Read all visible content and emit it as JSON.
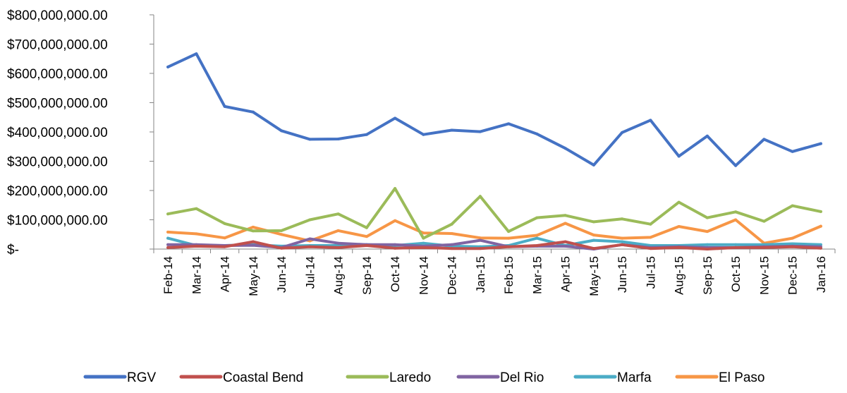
{
  "chart_data": {
    "type": "line",
    "title": "",
    "xlabel": "",
    "ylabel": "",
    "categories": [
      "Feb-14",
      "Mar-14",
      "Apr-14",
      "May-14",
      "Jun-14",
      "Jul-14",
      "Aug-14",
      "Sep-14",
      "Oct-14",
      "Nov-14",
      "Dec-14",
      "Jan-15",
      "Feb-15",
      "Mar-15",
      "Apr-15",
      "May-15",
      "Jun-15",
      "Jul-15",
      "Aug-15",
      "Sep-15",
      "Oct-15",
      "Nov-15",
      "Dec-15",
      "Jan-16"
    ],
    "ylim": [
      0,
      800000000
    ],
    "yticks": [
      0,
      100000000,
      200000000,
      300000000,
      400000000,
      500000000,
      600000000,
      700000000,
      800000000
    ],
    "ytick_labels": [
      "$-",
      "$100,000,000.00",
      "$200,000,000.00",
      "$300,000,000.00",
      "$400,000,000.00",
      "$500,000,000.00",
      "$600,000,000.00",
      "$700,000,000.00",
      "$800,000,000.00"
    ],
    "grid": false,
    "legend_position": "bottom",
    "series": [
      {
        "name": "RGV",
        "color": "#4472C4",
        "values": [
          622000000,
          667000000,
          487000000,
          468000000,
          404000000,
          375000000,
          376000000,
          391000000,
          447000000,
          391000000,
          406000000,
          401000000,
          428000000,
          393000000,
          344000000,
          287000000,
          398000000,
          440000000,
          317000000,
          386000000,
          285000000,
          375000000,
          333000000,
          360000000
        ]
      },
      {
        "name": "Coastal Bend",
        "color": "#C0504D",
        "values": [
          5000000,
          10000000,
          8000000,
          25000000,
          3000000,
          8000000,
          5000000,
          12000000,
          3000000,
          5000000,
          2000000,
          2000000,
          8000000,
          12000000,
          25000000,
          2000000,
          15000000,
          2000000,
          5000000,
          0,
          5000000,
          5000000,
          8000000,
          3000000
        ]
      },
      {
        "name": "Laredo",
        "color": "#9BBB59",
        "values": [
          120000000,
          138000000,
          87000000,
          62000000,
          63000000,
          100000000,
          120000000,
          73000000,
          207000000,
          37000000,
          85000000,
          180000000,
          60000000,
          107000000,
          115000000,
          93000000,
          103000000,
          85000000,
          160000000,
          107000000,
          127000000,
          95000000,
          148000000,
          128000000
        ]
      },
      {
        "name": "Del Rio",
        "color": "#8064A2",
        "values": [
          15000000,
          15000000,
          12000000,
          13000000,
          5000000,
          35000000,
          20000000,
          15000000,
          15000000,
          10000000,
          15000000,
          30000000,
          8000000,
          10000000,
          10000000,
          0,
          15000000,
          5000000,
          8000000,
          5000000,
          5000000,
          8000000,
          10000000,
          8000000
        ]
      },
      {
        "name": "Marfa",
        "color": "#4BACC6",
        "values": [
          37000000,
          12000000,
          12000000,
          15000000,
          10000000,
          12000000,
          12000000,
          15000000,
          12000000,
          20000000,
          10000000,
          8000000,
          12000000,
          37000000,
          12000000,
          30000000,
          25000000,
          12000000,
          12000000,
          15000000,
          15000000,
          15000000,
          18000000,
          15000000
        ]
      },
      {
        "name": "El Paso",
        "color": "#F79646",
        "values": [
          58000000,
          52000000,
          38000000,
          75000000,
          50000000,
          28000000,
          63000000,
          43000000,
          97000000,
          55000000,
          53000000,
          38000000,
          37000000,
          47000000,
          88000000,
          48000000,
          37000000,
          40000000,
          77000000,
          60000000,
          100000000,
          20000000,
          37000000,
          78000000
        ]
      }
    ]
  }
}
